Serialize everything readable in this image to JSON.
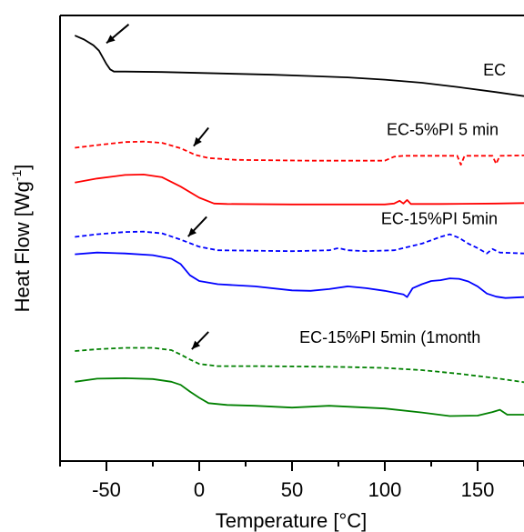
{
  "chart_data": {
    "type": "line",
    "xlabel": "Temperature [°C]",
    "ylabel": "Heat Flow [Wg",
    "ylabel_superscript": "-1",
    "ylabel_suffix": "]",
    "xlim": [
      -75,
      175
    ],
    "x_ticks": [
      -50,
      0,
      50,
      100,
      150
    ],
    "y_units": "relative heat flow (arbitrary, curves vertically offset)",
    "ylim": [
      0,
      100
    ],
    "y_ticks_shown": false,
    "grid": false,
    "legend": "none; series labelled inline at right",
    "series": [
      {
        "name": "EC",
        "color": "#000000",
        "dash": "solid",
        "points": [
          [
            -67,
            95.5
          ],
          [
            -62,
            94.6
          ],
          [
            -57,
            93.3
          ],
          [
            -54,
            92.1
          ],
          [
            -52,
            90.6
          ],
          [
            -50,
            89.1
          ],
          [
            -48,
            87.9
          ],
          [
            -46,
            87.4
          ],
          [
            -40,
            87.4
          ],
          [
            -20,
            87.3
          ],
          [
            0,
            87.1
          ],
          [
            20,
            86.9
          ],
          [
            40,
            86.7
          ],
          [
            60,
            86.4
          ],
          [
            80,
            86.1
          ],
          [
            100,
            85.6
          ],
          [
            120,
            84.9
          ],
          [
            140,
            83.9
          ],
          [
            160,
            82.8
          ],
          [
            175,
            81.9
          ]
        ]
      },
      {
        "name": "EC-5%PI 5 min",
        "color": "#ff0000",
        "dash": "dashed",
        "points": [
          [
            -67,
            70.3
          ],
          [
            -55,
            70.9
          ],
          [
            -40,
            71.6
          ],
          [
            -30,
            71.7
          ],
          [
            -20,
            71.4
          ],
          [
            -10,
            70.2
          ],
          [
            -2,
            68.7
          ],
          [
            5,
            68.0
          ],
          [
            20,
            67.6
          ],
          [
            60,
            67.4
          ],
          [
            100,
            67.4
          ],
          [
            105,
            68.3
          ],
          [
            110,
            68.5
          ],
          [
            120,
            68.5
          ],
          [
            130,
            68.5
          ],
          [
            139,
            68.5
          ],
          [
            141,
            66.5
          ],
          [
            143,
            68.5
          ],
          [
            158,
            68.5
          ],
          [
            160,
            66.7
          ],
          [
            162,
            68.5
          ],
          [
            175,
            68.6
          ]
        ]
      },
      {
        "name": "",
        "color": "#ff0000",
        "dash": "solid",
        "points": [
          [
            -67,
            62.5
          ],
          [
            -55,
            63.4
          ],
          [
            -40,
            64.2
          ],
          [
            -30,
            64.3
          ],
          [
            -20,
            63.7
          ],
          [
            -10,
            61.6
          ],
          [
            0,
            59.1
          ],
          [
            8,
            57.8
          ],
          [
            15,
            57.7
          ],
          [
            50,
            57.6
          ],
          [
            100,
            57.6
          ],
          [
            105,
            57.8
          ],
          [
            108,
            58.4
          ],
          [
            110,
            57.8
          ],
          [
            112,
            58.6
          ],
          [
            114,
            57.7
          ],
          [
            130,
            57.7
          ],
          [
            160,
            57.8
          ],
          [
            175,
            57.9
          ]
        ]
      },
      {
        "name": "EC-15%PI 5min",
        "color": "#0000ff",
        "dash": "dashed",
        "points": [
          [
            -67,
            50.3
          ],
          [
            -55,
            50.9
          ],
          [
            -40,
            51.4
          ],
          [
            -30,
            51.5
          ],
          [
            -20,
            51.1
          ],
          [
            -10,
            49.7
          ],
          [
            0,
            48.1
          ],
          [
            10,
            47.3
          ],
          [
            50,
            47.1
          ],
          [
            70,
            47.3
          ],
          [
            75,
            47.8
          ],
          [
            80,
            47.3
          ],
          [
            90,
            47.1
          ],
          [
            105,
            47.3
          ],
          [
            120,
            48.8
          ],
          [
            130,
            50.3
          ],
          [
            135,
            50.9
          ],
          [
            140,
            50.1
          ],
          [
            145,
            48.8
          ],
          [
            150,
            47.8
          ],
          [
            155,
            46.6
          ],
          [
            158,
            47.6
          ],
          [
            162,
            46.8
          ],
          [
            175,
            46.6
          ]
        ]
      },
      {
        "name": "",
        "color": "#0000ff",
        "dash": "solid",
        "points": [
          [
            -67,
            46.4
          ],
          [
            -55,
            46.8
          ],
          [
            -40,
            46.6
          ],
          [
            -25,
            46.2
          ],
          [
            -15,
            45.4
          ],
          [
            -10,
            44.2
          ],
          [
            -5,
            41.7
          ],
          [
            0,
            40.4
          ],
          [
            10,
            39.7
          ],
          [
            30,
            39.2
          ],
          [
            50,
            38.3
          ],
          [
            60,
            38.2
          ],
          [
            70,
            38.6
          ],
          [
            80,
            39.2
          ],
          [
            90,
            38.8
          ],
          [
            100,
            38.2
          ],
          [
            110,
            37.4
          ],
          [
            112,
            36.8
          ],
          [
            115,
            38.8
          ],
          [
            120,
            39.7
          ],
          [
            125,
            40.4
          ],
          [
            130,
            40.6
          ],
          [
            135,
            41.0
          ],
          [
            140,
            40.9
          ],
          [
            145,
            40.3
          ],
          [
            150,
            39.2
          ],
          [
            155,
            37.6
          ],
          [
            160,
            36.9
          ],
          [
            165,
            36.6
          ],
          [
            175,
            36.8
          ]
        ]
      },
      {
        "name": "EC-15%PI 5min (1month",
        "color": "#008000",
        "dash": "dashed",
        "points": [
          [
            -67,
            24.7
          ],
          [
            -55,
            25.1
          ],
          [
            -40,
            25.4
          ],
          [
            -25,
            25.4
          ],
          [
            -15,
            24.9
          ],
          [
            -10,
            23.9
          ],
          [
            -5,
            22.8
          ],
          [
            0,
            21.8
          ],
          [
            10,
            21.3
          ],
          [
            30,
            21.3
          ],
          [
            60,
            21.2
          ],
          [
            80,
            21.1
          ],
          [
            100,
            20.9
          ],
          [
            120,
            20.4
          ],
          [
            140,
            19.6
          ],
          [
            160,
            18.6
          ],
          [
            175,
            17.7
          ]
        ]
      },
      {
        "name": "",
        "color": "#008000",
        "dash": "solid",
        "points": [
          [
            -67,
            17.8
          ],
          [
            -55,
            18.5
          ],
          [
            -40,
            18.6
          ],
          [
            -25,
            18.4
          ],
          [
            -15,
            17.8
          ],
          [
            -10,
            17.1
          ],
          [
            -5,
            15.6
          ],
          [
            0,
            14.2
          ],
          [
            5,
            13.0
          ],
          [
            15,
            12.6
          ],
          [
            30,
            12.4
          ],
          [
            50,
            12.0
          ],
          [
            70,
            12.4
          ],
          [
            80,
            12.2
          ],
          [
            100,
            11.8
          ],
          [
            120,
            10.9
          ],
          [
            135,
            10.1
          ],
          [
            150,
            10.2
          ],
          [
            158,
            11.0
          ],
          [
            162,
            11.5
          ],
          [
            166,
            10.4
          ],
          [
            175,
            10.4
          ]
        ]
      }
    ],
    "annotations": {
      "arrows": [
        {
          "from": [
            -38,
            98.0
          ],
          "to": [
            -50,
            93.8
          ]
        },
        {
          "from": [
            5,
            74.8
          ],
          "to": [
            -3,
            70.7
          ]
        },
        {
          "from": [
            4,
            54.8
          ],
          "to": [
            -6,
            50.4
          ]
        },
        {
          "from": [
            5,
            29.0
          ],
          "to": [
            -4,
            25.1
          ]
        }
      ],
      "label_points": [
        {
          "series_index": 0,
          "at": [
            153,
            86.5
          ]
        },
        {
          "series_index": 1,
          "at": [
            101,
            73.2
          ]
        },
        {
          "series_index": 3,
          "at": [
            98,
            53.2
          ]
        },
        {
          "series_index": 5,
          "at": [
            54,
            26.5
          ]
        }
      ]
    }
  }
}
